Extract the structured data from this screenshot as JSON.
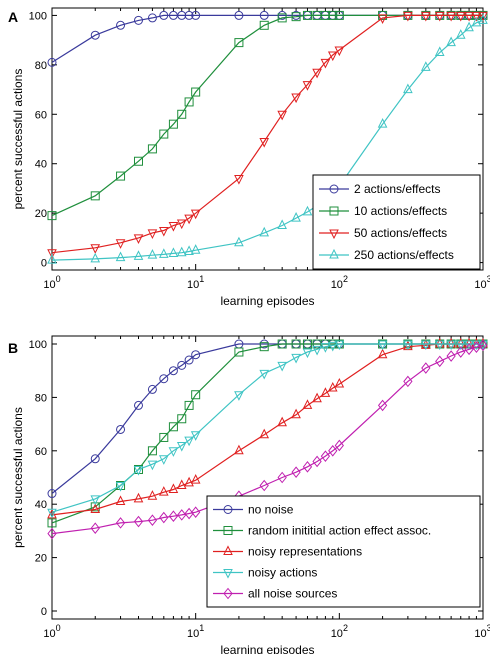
{
  "chart_data": [
    {
      "type": "line",
      "panel_label": "A",
      "xlabel": "learning episodes",
      "ylabel": "percent successful actions",
      "xscale": "log",
      "xlim": [
        1,
        1000
      ],
      "ylim": [
        -3,
        103
      ],
      "yticks": [
        0,
        20,
        40,
        60,
        80,
        100
      ],
      "xticks": [
        {
          "base": "10",
          "exp": "0",
          "value": 1
        },
        {
          "base": "10",
          "exp": "1",
          "value": 10
        },
        {
          "base": "10",
          "exp": "2",
          "value": 100
        },
        {
          "base": "10",
          "exp": "3",
          "value": 1000
        }
      ],
      "legend_position": "lower-right",
      "series": [
        {
          "name": "2 actions/effects",
          "color": "#3a3a9c",
          "marker": "circle",
          "x": [
            1,
            2,
            3,
            4,
            5,
            6,
            7,
            8,
            9,
            10,
            20,
            30,
            40,
            50,
            60,
            70,
            80,
            90,
            100,
            200,
            300,
            400,
            500,
            600,
            700,
            800,
            900,
            1000
          ],
          "y": [
            81,
            92,
            96,
            98,
            99,
            100,
            100,
            100,
            100,
            100,
            100,
            100,
            100,
            100,
            100,
            100,
            100,
            100,
            100,
            100,
            100,
            100,
            100,
            100,
            100,
            100,
            100,
            100
          ]
        },
        {
          "name": "10 actions/effects",
          "color": "#1f8f3c",
          "marker": "square",
          "x": [
            1,
            2,
            3,
            4,
            5,
            6,
            7,
            8,
            9,
            10,
            20,
            30,
            40,
            50,
            60,
            70,
            80,
            90,
            100,
            200,
            300,
            400,
            500,
            600,
            700,
            800,
            900,
            1000
          ],
          "y": [
            19,
            27,
            35,
            41,
            46,
            52,
            56,
            60,
            65,
            69,
            89,
            96,
            99,
            99.5,
            100,
            100,
            100,
            100,
            100,
            100,
            100,
            100,
            100,
            100,
            100,
            100,
            100,
            100
          ]
        },
        {
          "name": "50 actions/effects",
          "color": "#e02020",
          "marker": "triangle-down",
          "x": [
            1,
            2,
            3,
            4,
            5,
            6,
            7,
            8,
            9,
            10,
            20,
            30,
            40,
            50,
            60,
            70,
            80,
            90,
            100,
            200,
            300,
            400,
            500,
            600,
            700,
            800,
            900,
            1000
          ],
          "y": [
            4,
            6,
            8,
            10,
            12,
            13,
            15,
            16,
            18,
            20,
            34,
            49,
            60,
            67,
            72,
            77,
            81,
            84,
            86,
            99,
            100,
            100,
            100,
            100,
            100,
            100,
            100,
            100
          ]
        },
        {
          "name": "250 actions/effects",
          "color": "#3fc4c4",
          "marker": "triangle-up",
          "x": [
            1,
            2,
            3,
            4,
            5,
            6,
            7,
            8,
            9,
            10,
            20,
            30,
            40,
            50,
            60,
            70,
            80,
            90,
            100,
            200,
            300,
            400,
            500,
            600,
            700,
            800,
            900,
            1000
          ],
          "y": [
            1,
            1.5,
            2,
            2.5,
            3,
            3.3,
            3.7,
            4,
            4.5,
            5,
            8,
            12,
            15,
            18,
            20.5,
            23,
            26,
            28,
            31,
            56,
            70,
            79,
            85,
            89,
            92,
            95,
            97,
            98
          ]
        }
      ]
    },
    {
      "type": "line",
      "panel_label": "B",
      "xlabel": "learning episodes",
      "ylabel": "percent successful actions",
      "xscale": "log",
      "xlim": [
        1,
        1000
      ],
      "ylim": [
        -3,
        103
      ],
      "yticks": [
        0,
        20,
        40,
        60,
        80,
        100
      ],
      "xticks": [
        {
          "base": "10",
          "exp": "0",
          "value": 1
        },
        {
          "base": "10",
          "exp": "1",
          "value": 10
        },
        {
          "base": "10",
          "exp": "2",
          "value": 100
        },
        {
          "base": "10",
          "exp": "3",
          "value": 1000
        }
      ],
      "legend_position": "lower-right",
      "series": [
        {
          "name": "no noise",
          "color": "#3a3a9c",
          "marker": "circle",
          "x": [
            1,
            2,
            3,
            4,
            5,
            6,
            7,
            8,
            9,
            10,
            20,
            30,
            40,
            50,
            60,
            70,
            80,
            90,
            100,
            200,
            300,
            400,
            500,
            600,
            700,
            800,
            900,
            1000
          ],
          "y": [
            44,
            57,
            68,
            77,
            83,
            87,
            90,
            92,
            94,
            96,
            100,
            100,
            100,
            100,
            100,
            100,
            100,
            100,
            100,
            100,
            100,
            100,
            100,
            100,
            100,
            100,
            100,
            100
          ]
        },
        {
          "name": "random inititial action effect assoc.",
          "color": "#1f8f3c",
          "marker": "square",
          "x": [
            1,
            2,
            3,
            4,
            5,
            6,
            7,
            8,
            9,
            10,
            20,
            30,
            40,
            50,
            60,
            70,
            80,
            90,
            100,
            200,
            300,
            400,
            500,
            600,
            700,
            800,
            900,
            1000
          ],
          "y": [
            33,
            39,
            47,
            53,
            60,
            65,
            69,
            72,
            77,
            81,
            97,
            99,
            100,
            100,
            100,
            100,
            100,
            100,
            100,
            100,
            100,
            100,
            100,
            100,
            100,
            100,
            100,
            100
          ]
        },
        {
          "name": "noisy representations",
          "color": "#e02020",
          "marker": "triangle-up",
          "x": [
            1,
            2,
            3,
            4,
            5,
            6,
            7,
            8,
            9,
            10,
            20,
            30,
            40,
            50,
            60,
            70,
            80,
            90,
            100,
            200,
            300,
            400,
            500,
            600,
            700,
            800,
            900,
            1000
          ],
          "y": [
            36,
            38,
            41,
            42,
            43,
            44.5,
            45.5,
            47,
            48,
            49,
            60,
            66,
            70.5,
            73.5,
            77,
            79.5,
            81.5,
            83.5,
            85,
            96,
            99,
            99.5,
            100,
            100,
            100,
            100,
            100,
            100
          ]
        },
        {
          "name": "noisy actions",
          "color": "#3fc4c4",
          "marker": "triangle-down",
          "x": [
            1,
            2,
            3,
            4,
            5,
            6,
            7,
            8,
            9,
            10,
            20,
            30,
            40,
            50,
            60,
            70,
            80,
            90,
            100,
            200,
            300,
            400,
            500,
            600,
            700,
            800,
            900,
            1000
          ],
          "y": [
            37,
            42,
            47,
            53,
            55,
            57,
            60,
            62,
            64,
            66,
            81,
            89,
            92,
            95,
            97,
            98,
            99,
            99.5,
            100,
            100,
            100,
            100,
            100,
            100,
            100,
            100,
            100,
            100
          ]
        },
        {
          "name": "all noise sources",
          "color": "#c020b0",
          "marker": "diamond",
          "x": [
            1,
            2,
            3,
            4,
            5,
            6,
            7,
            8,
            9,
            10,
            20,
            30,
            40,
            50,
            60,
            70,
            80,
            90,
            100,
            200,
            300,
            400,
            500,
            600,
            700,
            800,
            900,
            1000
          ],
          "y": [
            29,
            31,
            33,
            33.5,
            34,
            35,
            35.5,
            36,
            36.5,
            37,
            43,
            47,
            50,
            52,
            54,
            56,
            58,
            60,
            62,
            77,
            86,
            91,
            93.5,
            95.5,
            97,
            98,
            98.8,
            99.5
          ]
        }
      ]
    }
  ]
}
